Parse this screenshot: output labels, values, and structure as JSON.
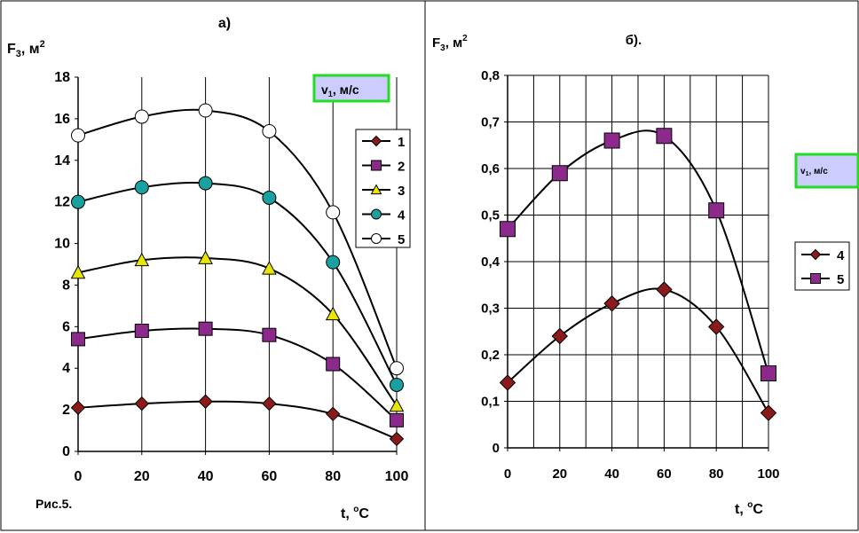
{
  "figure_caption": "Рис.5.",
  "chart_data": [
    {
      "type": "line",
      "panel_label": "а)",
      "ylabel": "F",
      "ylabel_sub": "3",
      "ylabel_unit": ", м",
      "ylabel_sup": "2",
      "xlabel": "t, ",
      "xlabel_sup": "o",
      "xlabel_unit": "C",
      "legend_title": "v",
      "legend_title_sub": "1",
      "legend_title_unit": ", м/с",
      "x": [
        0,
        20,
        40,
        60,
        80,
        100
      ],
      "x_tick_labels": [
        "0",
        "20",
        "40",
        "60",
        "80",
        "100"
      ],
      "xlim": [
        0,
        100
      ],
      "ylim": [
        0,
        18
      ],
      "y_ticks": [
        0,
        2,
        4,
        6,
        8,
        10,
        12,
        14,
        16,
        18
      ],
      "y_tick_labels": [
        "0",
        "2",
        "4",
        "6",
        "8",
        "10",
        "12",
        "14",
        "16",
        "18"
      ],
      "grid": "vertical",
      "legend_position": "right",
      "series": [
        {
          "name": "1",
          "marker": "diamond",
          "color": "#8b1a1a",
          "values": [
            2.1,
            2.3,
            2.4,
            2.3,
            1.8,
            0.6
          ]
        },
        {
          "name": "2",
          "marker": "square",
          "color": "#8b2a8b",
          "values": [
            5.4,
            5.8,
            5.9,
            5.6,
            4.2,
            1.5
          ]
        },
        {
          "name": "3",
          "marker": "triangle",
          "color": "#e6e600",
          "values": [
            8.6,
            9.2,
            9.3,
            8.8,
            6.6,
            2.2
          ]
        },
        {
          "name": "4",
          "marker": "circle-filled",
          "color": "#1aa0a0",
          "values": [
            12.0,
            12.7,
            12.9,
            12.2,
            9.1,
            3.2
          ]
        },
        {
          "name": "5",
          "marker": "circle-open",
          "color": "#ffffff",
          "values": [
            15.2,
            16.1,
            16.4,
            15.4,
            11.5,
            4.0
          ]
        }
      ]
    },
    {
      "type": "line",
      "panel_label": "б).",
      "ylabel": "F",
      "ylabel_sub": "3",
      "ylabel_unit": ", м",
      "ylabel_sup": "2",
      "xlabel": "t, ",
      "xlabel_sup": "o",
      "xlabel_unit": "C",
      "legend_title": "v",
      "legend_title_sub": "1",
      "legend_title_unit": ", м/с",
      "x": [
        0,
        20,
        40,
        60,
        80,
        100
      ],
      "x_tick_labels": [
        "0",
        "20",
        "40",
        "60",
        "80",
        "100"
      ],
      "xlim": [
        0,
        100
      ],
      "ylim": [
        0,
        0.8
      ],
      "y_ticks": [
        0,
        0.1,
        0.2,
        0.3,
        0.4,
        0.5,
        0.6,
        0.7,
        0.8
      ],
      "y_tick_labels": [
        "0",
        "0,1",
        "0,2",
        "0,3",
        "0,4",
        "0,5",
        "0,6",
        "0,7",
        "0,8"
      ],
      "grid": "both",
      "legend_position": "right",
      "series": [
        {
          "name": "4",
          "marker": "diamond",
          "color": "#8b1a1a",
          "values": [
            0.14,
            0.24,
            0.31,
            0.34,
            0.26,
            0.075
          ]
        },
        {
          "name": "5",
          "marker": "square",
          "color": "#8b2a8b",
          "values": [
            0.47,
            0.59,
            0.66,
            0.67,
            0.51,
            0.16
          ]
        }
      ]
    }
  ],
  "colors": {
    "legend_title_bg": "#ccccff",
    "legend_title_border": "#22dd22",
    "axis": "#000000",
    "grid": "#000000"
  }
}
